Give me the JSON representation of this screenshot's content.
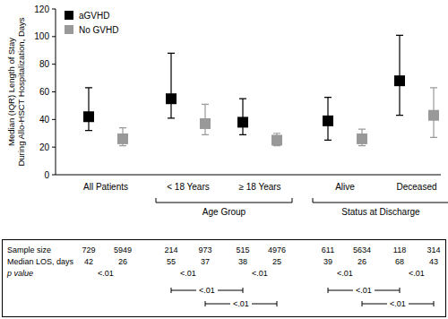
{
  "chart_data": {
    "type": "dot_error_bar",
    "ylabel": [
      "Median (IQR) Length of Stay",
      "During Allo-HSCT Hospitalization, Days"
    ],
    "categories": [
      "All Patients",
      "< 18 Years",
      "≥ 18 Years",
      "Alive",
      "Deceased"
    ],
    "groups": [
      {
        "label": "Age Group",
        "categories": [
          1,
          2
        ]
      },
      {
        "label": "Status at Discharge",
        "categories": [
          3,
          4
        ]
      }
    ],
    "series": [
      {
        "name": "aGVHD",
        "color": "#000000",
        "marker": "square",
        "values": [
          42,
          55,
          38,
          39,
          68
        ],
        "iqr_low": [
          32,
          41,
          29,
          25,
          43
        ],
        "iqr_high": [
          63,
          88,
          55,
          56,
          101
        ]
      },
      {
        "name": "No GVHD",
        "color": "#999999",
        "marker": "square",
        "values": [
          26,
          37,
          25,
          26,
          43
        ],
        "iqr_low": [
          21,
          29,
          21,
          21,
          27
        ],
        "iqr_high": [
          34,
          51,
          30,
          33,
          63
        ]
      }
    ],
    "ylim": [
      0,
      120
    ],
    "yticks": [
      0,
      20,
      40,
      60,
      80,
      100,
      120
    ],
    "grid": false,
    "legend": "upper left",
    "table": {
      "rows": [
        {
          "label": "Sample size",
          "values": [
            [
              729,
              214,
              515,
              611,
              118
            ],
            [
              5949,
              973,
              4976,
              5634,
              314
            ]
          ]
        },
        {
          "label": "Median LOS, days",
          "values": [
            [
              42,
              55,
              38,
              39,
              68
            ],
            [
              26,
              37,
              25,
              26,
              43
            ]
          ]
        }
      ],
      "p_value_label": "p value",
      "p_values": [
        "<.01",
        "<.01",
        "<.01",
        "<.01",
        "<.01"
      ],
      "comparisons": [
        {
          "categories": [
            1,
            2
          ],
          "series": 0,
          "p": "<.01"
        },
        {
          "categories": [
            1,
            2
          ],
          "series": 1,
          "p": "<.01"
        },
        {
          "categories": [
            3,
            4
          ],
          "series": 0,
          "p": "<.01"
        },
        {
          "categories": [
            3,
            4
          ],
          "series": 1,
          "p": "<.01"
        }
      ]
    }
  }
}
